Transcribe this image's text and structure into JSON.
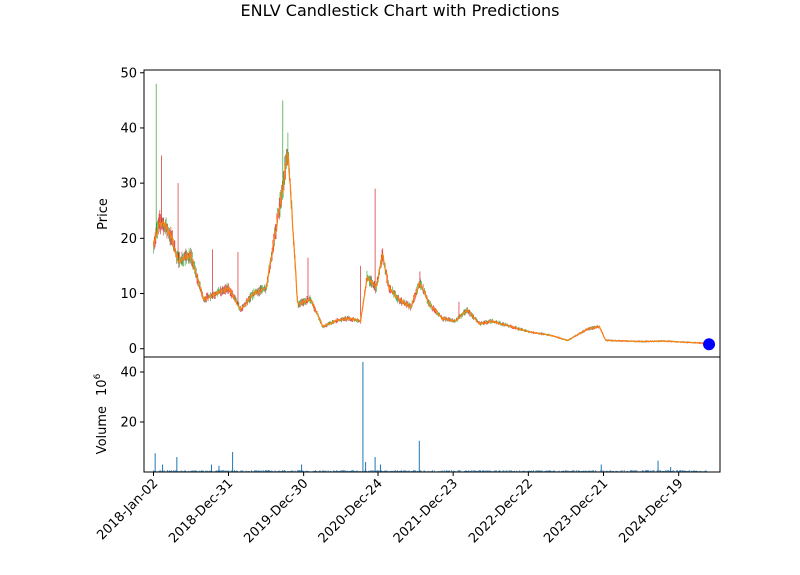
{
  "chart_data": [
    {
      "type": "line",
      "title": "ENLV Candlestick Chart with Predictions",
      "ylabel": "Price",
      "ylim": [
        -1.5,
        50.5
      ],
      "yticks": [
        0,
        10,
        20,
        30,
        40,
        50
      ],
      "grid": false,
      "x_dates": [
        "2018-01-02",
        "2018-02-01",
        "2018-03-01",
        "2018-04-01",
        "2018-05-01",
        "2018-07-01",
        "2018-09-01",
        "2018-11-01",
        "2019-01-01",
        "2019-03-01",
        "2019-05-01",
        "2019-07-01",
        "2019-08-15",
        "2019-09-15",
        "2019-10-15",
        "2019-12-01",
        "2020-02-01",
        "2020-04-01",
        "2020-06-01",
        "2020-08-01",
        "2020-10-01",
        "2020-11-01",
        "2020-12-15",
        "2021-01-15",
        "2021-02-15",
        "2021-04-01",
        "2021-06-01",
        "2021-07-15",
        "2021-09-01",
        "2021-11-01",
        "2022-01-01",
        "2022-03-01",
        "2022-05-01",
        "2022-07-01",
        "2022-10-01",
        "2023-01-01",
        "2023-04-01",
        "2023-07-01",
        "2023-10-01",
        "2023-12-01",
        "2024-01-01",
        "2024-04-01",
        "2024-07-01",
        "2024-10-01",
        "2025-01-01",
        "2025-03-01",
        "2025-05-01"
      ],
      "series": [
        {
          "values": [
            19,
            23,
            22,
            20,
            16,
            17,
            9,
            10,
            11,
            7,
            10,
            11,
            21,
            28,
            36,
            8,
            9,
            4,
            5,
            5.5,
            5,
            13,
            11,
            17,
            11,
            9,
            7.5,
            12,
            8,
            5.5,
            5,
            7,
            4.5,
            5,
            4,
            3,
            2.5,
            1.5,
            3.5,
            4,
            1.5,
            1.4,
            1.3,
            1.4,
            1.2,
            1.1,
            1.0
          ],
          "color": "#ff7f0e"
        }
      ],
      "highs": [
        {
          "x": "2018-01-15",
          "value": 48
        },
        {
          "x": "2018-02-10",
          "value": 35
        },
        {
          "x": "2018-05-01",
          "value": 30
        },
        {
          "x": "2018-10-15",
          "value": 18
        },
        {
          "x": "2019-02-15",
          "value": 17.5
        },
        {
          "x": "2019-09-20",
          "value": 45
        },
        {
          "x": "2020-01-20",
          "value": 16.5
        },
        {
          "x": "2020-10-01",
          "value": 15
        },
        {
          "x": "2020-12-10",
          "value": 29
        },
        {
          "x": "2021-07-15",
          "value": 14
        },
        {
          "x": "2022-01-20",
          "value": 8.5
        }
      ],
      "predictions": [
        {
          "x": "2025-05-15",
          "value": 0.8,
          "color": "#0000ff"
        }
      ]
    },
    {
      "type": "bar",
      "ylabel": "Volume",
      "ylabel_multiplier": "10",
      "ylabel_exponent": "6",
      "ylim": [
        0,
        46
      ],
      "yticks": [
        20,
        40
      ],
      "xticklabels": [
        "2018-Jan-02",
        "2018-Dec-31",
        "2019-Dec-30",
        "2020-Dec-24",
        "2021-Dec-23",
        "2022-Dec-22",
        "2023-Dec-21",
        "2024-Dec-19"
      ],
      "color": "#1f77b4",
      "spikes": [
        {
          "x": "2018-01-10",
          "value": 7.5
        },
        {
          "x": "2018-02-15",
          "value": 3
        },
        {
          "x": "2018-04-25",
          "value": 6
        },
        {
          "x": "2018-10-10",
          "value": 3
        },
        {
          "x": "2018-11-15",
          "value": 2.5
        },
        {
          "x": "2019-01-20",
          "value": 8
        },
        {
          "x": "2019-12-20",
          "value": 3
        },
        {
          "x": "2020-10-12",
          "value": 44
        },
        {
          "x": "2020-10-25",
          "value": 4
        },
        {
          "x": "2020-12-10",
          "value": 6
        },
        {
          "x": "2021-01-05",
          "value": 3
        },
        {
          "x": "2021-07-12",
          "value": 12.5
        },
        {
          "x": "2023-12-10",
          "value": 3
        },
        {
          "x": "2024-09-10",
          "value": 4.5
        },
        {
          "x": "2024-11-10",
          "value": 2
        }
      ]
    }
  ]
}
